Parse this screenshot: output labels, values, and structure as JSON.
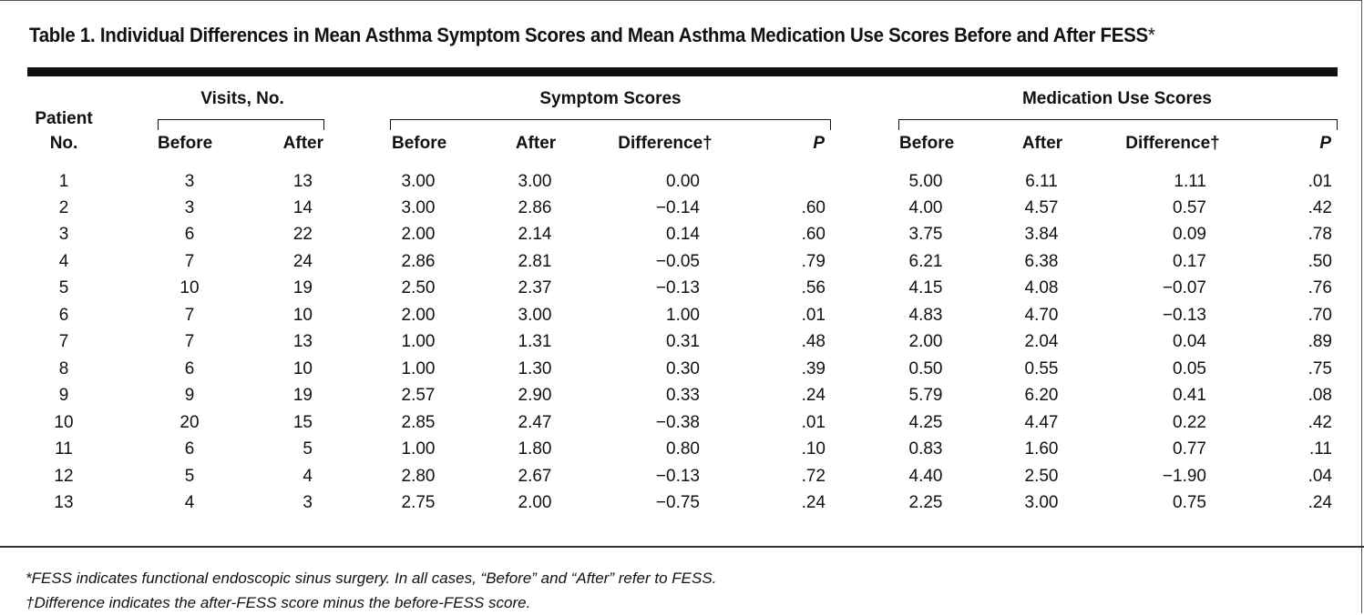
{
  "title": "Table 1. Individual Differences in Mean Asthma Symptom Scores and Mean Asthma Medication Use Scores Before and After FESS",
  "title_mark": "*",
  "headers": {
    "patient_line1": "Patient",
    "patient_line2": "No.",
    "visits_group": "Visits, No.",
    "symptom_group": "Symptom Scores",
    "medication_group": "Medication Use Scores",
    "before": "Before",
    "after": "After",
    "difference": "Difference†",
    "p": "P"
  },
  "rows": [
    [
      "1",
      "3",
      "13",
      "3.00",
      "3.00",
      "0.00",
      "",
      "5.00",
      "6.11",
      "1.11",
      ".01"
    ],
    [
      "2",
      "3",
      "14",
      "3.00",
      "2.86",
      "−0.14",
      ".60",
      "4.00",
      "4.57",
      "0.57",
      ".42"
    ],
    [
      "3",
      "6",
      "22",
      "2.00",
      "2.14",
      "0.14",
      ".60",
      "3.75",
      "3.84",
      "0.09",
      ".78"
    ],
    [
      "4",
      "7",
      "24",
      "2.86",
      "2.81",
      "−0.05",
      ".79",
      "6.21",
      "6.38",
      "0.17",
      ".50"
    ],
    [
      "5",
      "10",
      "19",
      "2.50",
      "2.37",
      "−0.13",
      ".56",
      "4.15",
      "4.08",
      "−0.07",
      ".76"
    ],
    [
      "6",
      "7",
      "10",
      "2.00",
      "3.00",
      "1.00",
      ".01",
      "4.83",
      "4.70",
      "−0.13",
      ".70"
    ],
    [
      "7",
      "7",
      "13",
      "1.00",
      "1.31",
      "0.31",
      ".48",
      "2.00",
      "2.04",
      "0.04",
      ".89"
    ],
    [
      "8",
      "6",
      "10",
      "1.00",
      "1.30",
      "0.30",
      ".39",
      "0.50",
      "0.55",
      "0.05",
      ".75"
    ],
    [
      "9",
      "9",
      "19",
      "2.57",
      "2.90",
      "0.33",
      ".24",
      "5.79",
      "6.20",
      "0.41",
      ".08"
    ],
    [
      "10",
      "20",
      "15",
      "2.85",
      "2.47",
      "−0.38",
      ".01",
      "4.25",
      "4.47",
      "0.22",
      ".42"
    ],
    [
      "11",
      "6",
      "5",
      "1.00",
      "1.80",
      "0.80",
      ".10",
      "0.83",
      "1.60",
      "0.77",
      ".11"
    ],
    [
      "12",
      "5",
      "4",
      "2.80",
      "2.67",
      "−0.13",
      ".72",
      "4.40",
      "2.50",
      "−1.90",
      ".04"
    ],
    [
      "13",
      "4",
      "3",
      "2.75",
      "2.00",
      "−0.75",
      ".24",
      "2.25",
      "3.00",
      "0.75",
      ".24"
    ]
  ],
  "footnotes": [
    "*FESS indicates functional endoscopic sinus surgery. In all cases, “Before” and “After” refer to FESS.",
    "†Difference indicates the after-FESS score minus the before-FESS score."
  ]
}
